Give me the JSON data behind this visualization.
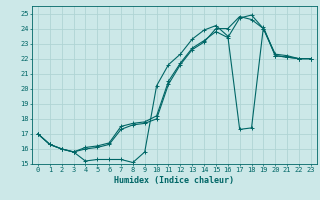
{
  "xlabel": "Humidex (Indice chaleur)",
  "bg_color": "#cce8e8",
  "grid_color": "#b0d4d4",
  "line_color": "#006666",
  "xlim": [
    -0.5,
    23.5
  ],
  "ylim": [
    15,
    25.5
  ],
  "xticks": [
    0,
    1,
    2,
    3,
    4,
    5,
    6,
    7,
    8,
    9,
    10,
    11,
    12,
    13,
    14,
    15,
    16,
    17,
    18,
    19,
    20,
    21,
    22,
    23
  ],
  "yticks": [
    15,
    16,
    17,
    18,
    19,
    20,
    21,
    22,
    23,
    24,
    25
  ],
  "line1_x": [
    0,
    1,
    2,
    3,
    4,
    5,
    6,
    7,
    8,
    9,
    10,
    11,
    12,
    13,
    14,
    15,
    16,
    17,
    18,
    19,
    20,
    21,
    22,
    23
  ],
  "line1_y": [
    17.0,
    16.3,
    16.0,
    15.8,
    15.2,
    15.3,
    15.3,
    15.3,
    15.1,
    15.8,
    20.2,
    21.6,
    22.3,
    23.3,
    23.9,
    24.2,
    23.5,
    17.3,
    17.4,
    24.1,
    22.2,
    22.1,
    22.0,
    22.0
  ],
  "line2_x": [
    0,
    1,
    2,
    3,
    4,
    5,
    6,
    7,
    8,
    9,
    10,
    11,
    12,
    13,
    14,
    15,
    16,
    17,
    18,
    19,
    20,
    21,
    22,
    23
  ],
  "line2_y": [
    17.0,
    16.3,
    16.0,
    15.8,
    16.0,
    16.1,
    16.3,
    17.3,
    17.6,
    17.7,
    18.0,
    20.3,
    21.6,
    22.6,
    23.1,
    24.0,
    24.0,
    24.8,
    24.6,
    24.0,
    22.2,
    22.1,
    22.0,
    22.0
  ],
  "line3_x": [
    0,
    1,
    2,
    3,
    4,
    5,
    6,
    7,
    8,
    9,
    10,
    11,
    12,
    13,
    14,
    15,
    16,
    17,
    18,
    19,
    20,
    21,
    22,
    23
  ],
  "line3_y": [
    17.0,
    16.3,
    16.0,
    15.8,
    16.1,
    16.2,
    16.4,
    17.5,
    17.7,
    17.8,
    18.2,
    20.5,
    21.7,
    22.7,
    23.2,
    23.8,
    23.4,
    24.7,
    24.9,
    24.0,
    22.3,
    22.2,
    22.0,
    22.0
  ]
}
